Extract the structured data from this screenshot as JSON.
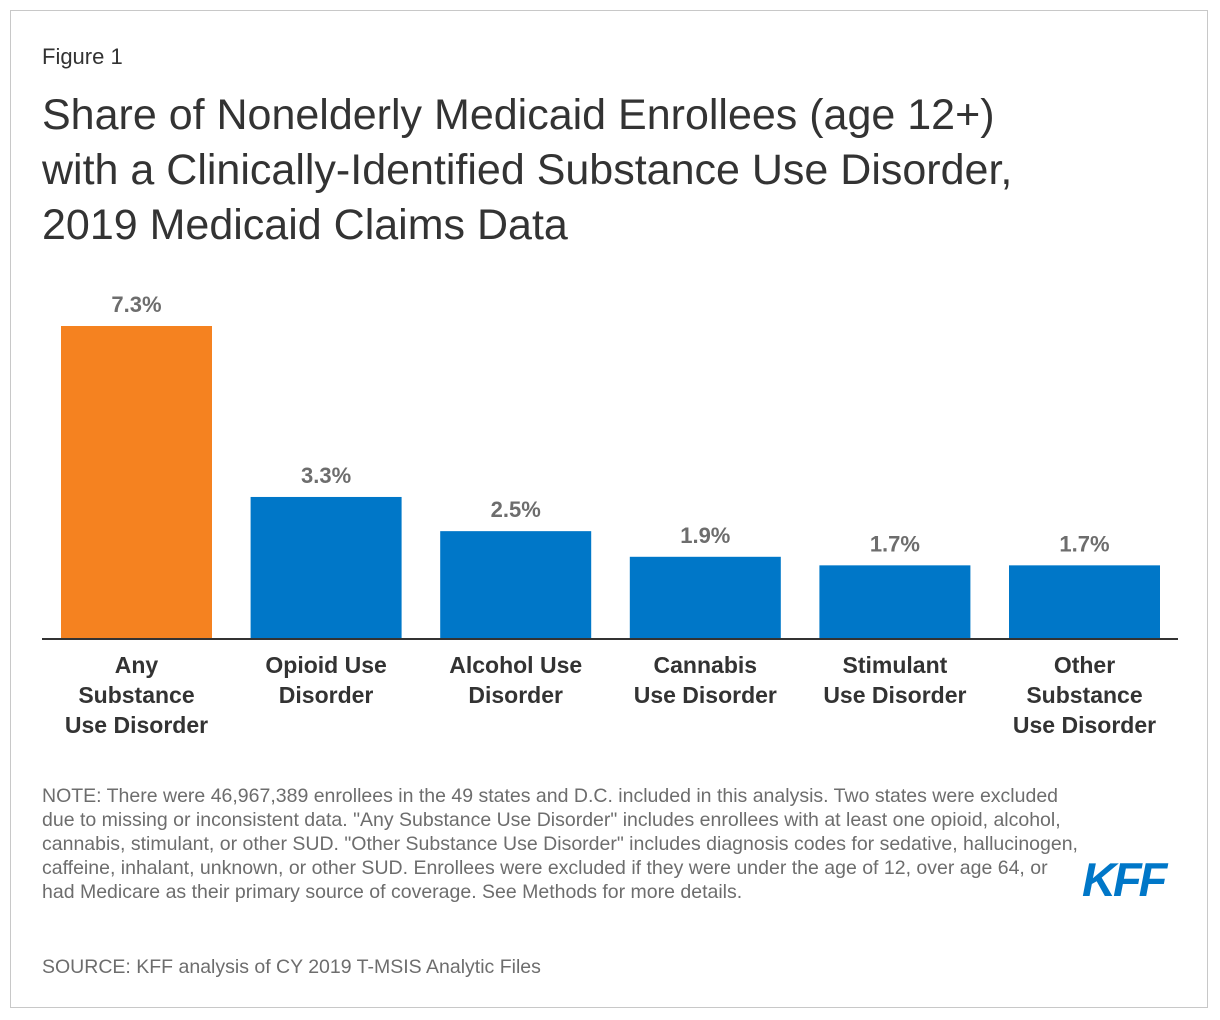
{
  "figure_label": "Figure 1",
  "title_lines": [
    "Share of Nonelderly Medicaid Enrollees (age 12+)",
    "with a Clinically-Identified Substance Use Disorder,",
    "2019 Medicaid Claims Data"
  ],
  "chart_data": {
    "type": "bar",
    "title": "Share of Nonelderly Medicaid Enrollees (age 12+) with a Clinically-Identified Substance Use Disorder, 2019 Medicaid Claims Data",
    "categories": [
      [
        "Any",
        "Substance",
        "Use Disorder"
      ],
      [
        "Opioid Use",
        "Disorder"
      ],
      [
        "Alcohol Use",
        "Disorder"
      ],
      [
        "Cannabis",
        "Use Disorder"
      ],
      [
        "Stimulant",
        "Use Disorder"
      ],
      [
        "Other",
        "Substance",
        "Use Disorder"
      ]
    ],
    "values": [
      7.3,
      3.3,
      2.5,
      1.9,
      1.7,
      1.7
    ],
    "value_labels": [
      "7.3%",
      "3.3%",
      "2.5%",
      "1.9%",
      "1.7%",
      "1.7%"
    ],
    "colors": [
      "#f58220",
      "#0077c8",
      "#0077c8",
      "#0077c8",
      "#0077c8",
      "#0077c8"
    ],
    "xlabel": "",
    "ylabel": "",
    "ylim": [
      0,
      7.3
    ],
    "grid": false,
    "legend": "none"
  },
  "notes": "NOTE: There were 46,967,389 enrollees in the 49 states and D.C. included in this analysis. Two states were excluded due to missing or inconsistent data. \"Any Substance Use Disorder\" includes enrollees with at least one opioid, alcohol, cannabis, stimulant, or other SUD. \"Other Substance Use Disorder\" includes diagnosis codes for sedative, hallucinogen, caffeine, inhalant, unknown, or other SUD. Enrollees were excluded if they were under the age of 12, over age 64, or had Medicare as their primary source of coverage. See Methods for more details.",
  "source": "SOURCE: KFF analysis of CY 2019 T-MSIS Analytic Files",
  "logo_text": "KFF",
  "colors": {
    "title": "#333333",
    "note": "#6d6d6d",
    "label": "#333333",
    "value_label": "#6d6d6d",
    "axis": "#333333",
    "logo": "#0077c8"
  }
}
